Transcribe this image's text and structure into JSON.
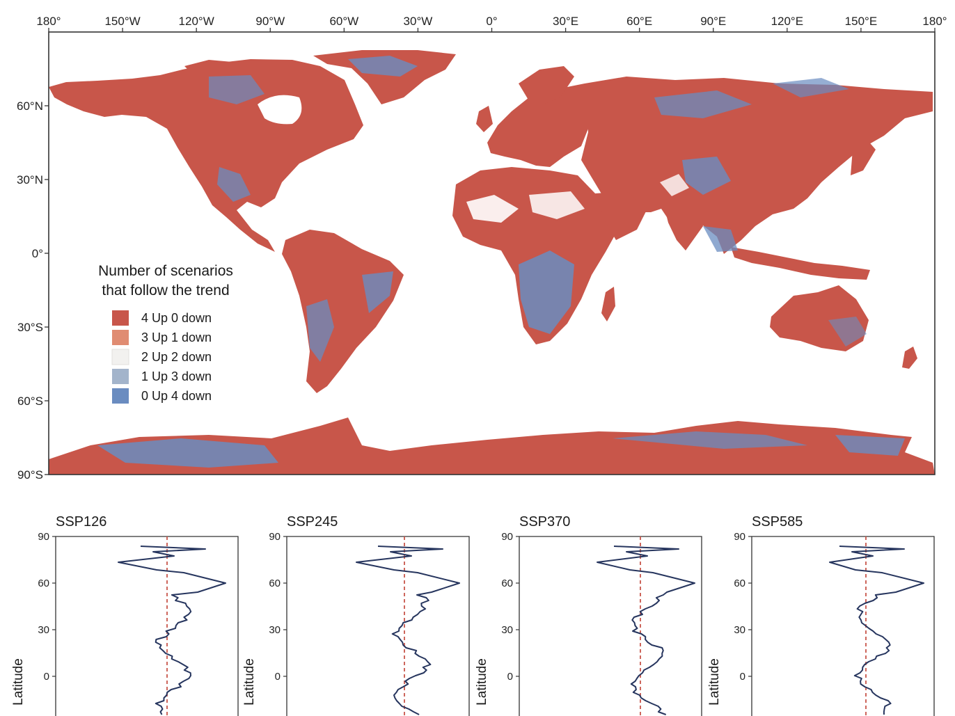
{
  "map": {
    "lon_ticks": [
      "180°",
      "150°W",
      "120°W",
      "90°W",
      "60°W",
      "30°W",
      "0°",
      "30°E",
      "60°E",
      "90°E",
      "120°E",
      "150°E",
      "180°"
    ],
    "lat_ticks": [
      "60°N",
      "30°N",
      "0°",
      "30°S",
      "60°S",
      "90°S"
    ],
    "legend": {
      "title_line1": "Number of scenarios",
      "title_line2": "that follow the trend",
      "items": [
        {
          "label": "4 Up 0 down",
          "color": "#c8564a"
        },
        {
          "label": "3 Up 1 down",
          "color": "#e08c72"
        },
        {
          "label": "2 Up 2 down",
          "color": "#f2f1ef"
        },
        {
          "label": "1 Up 3 down",
          "color": "#a3b4cb"
        },
        {
          "label": "0 Up 4 down",
          "color": "#6a8cc0"
        }
      ]
    },
    "colors": {
      "increase": "#c8564a",
      "decrease": "#6a8cc0",
      "mixed": "#a3b4cb"
    }
  },
  "panels": [
    {
      "title": "SSP126",
      "ylabel": "Latitude",
      "yticks": [
        "90",
        "60",
        "30",
        "0"
      ]
    },
    {
      "title": "SSP245",
      "ylabel": "Latitude",
      "yticks": [
        "90",
        "60",
        "30",
        "0"
      ]
    },
    {
      "title": "SSP370",
      "ylabel": "Latitude",
      "yticks": [
        "90",
        "60",
        "30",
        "0"
      ]
    },
    {
      "title": "SSP585",
      "ylabel": "Latitude",
      "yticks": [
        "90",
        "60",
        "30",
        "0"
      ]
    }
  ],
  "profile_style": {
    "line_color": "#26355e",
    "reference_color": "#c8564a"
  }
}
